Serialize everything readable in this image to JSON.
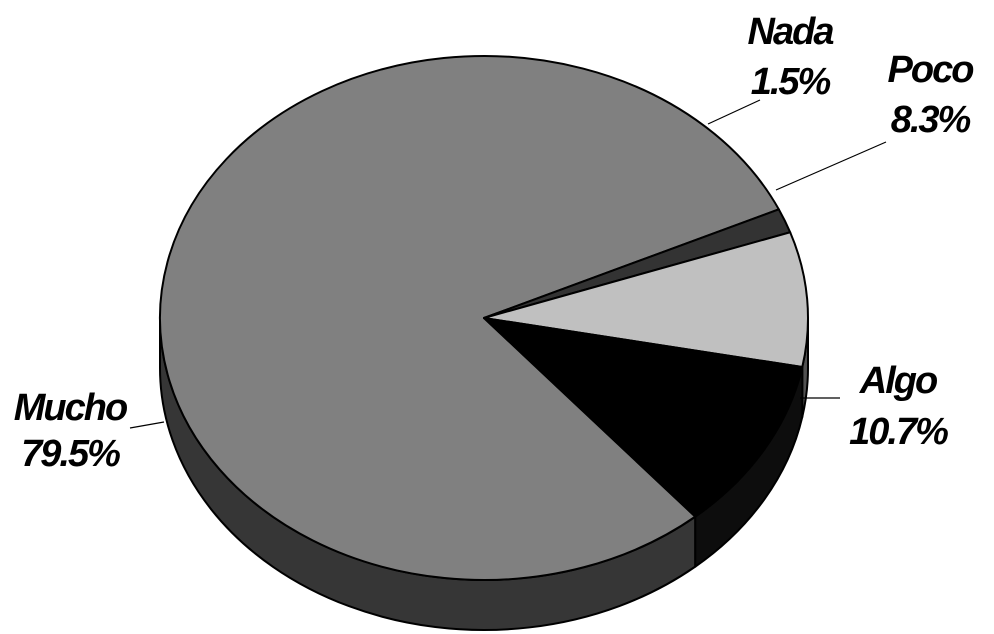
{
  "chart_data": {
    "type": "pie",
    "title": "",
    "three_d": true,
    "slices": [
      {
        "label": "Mucho",
        "value": 79.5,
        "value_label": "79.5%",
        "color": "#808080"
      },
      {
        "label": "Nada",
        "value": 1.5,
        "value_label": "1.5%",
        "color": "#333333"
      },
      {
        "label": "Poco",
        "value": 8.3,
        "value_label": "8.3%",
        "color": "#c0c0c0"
      },
      {
        "label": "Algo",
        "value": 10.7,
        "value_label": "10.7%",
        "color": "#000000"
      }
    ],
    "legend": "none",
    "data_labels": "outside with leader lines"
  }
}
